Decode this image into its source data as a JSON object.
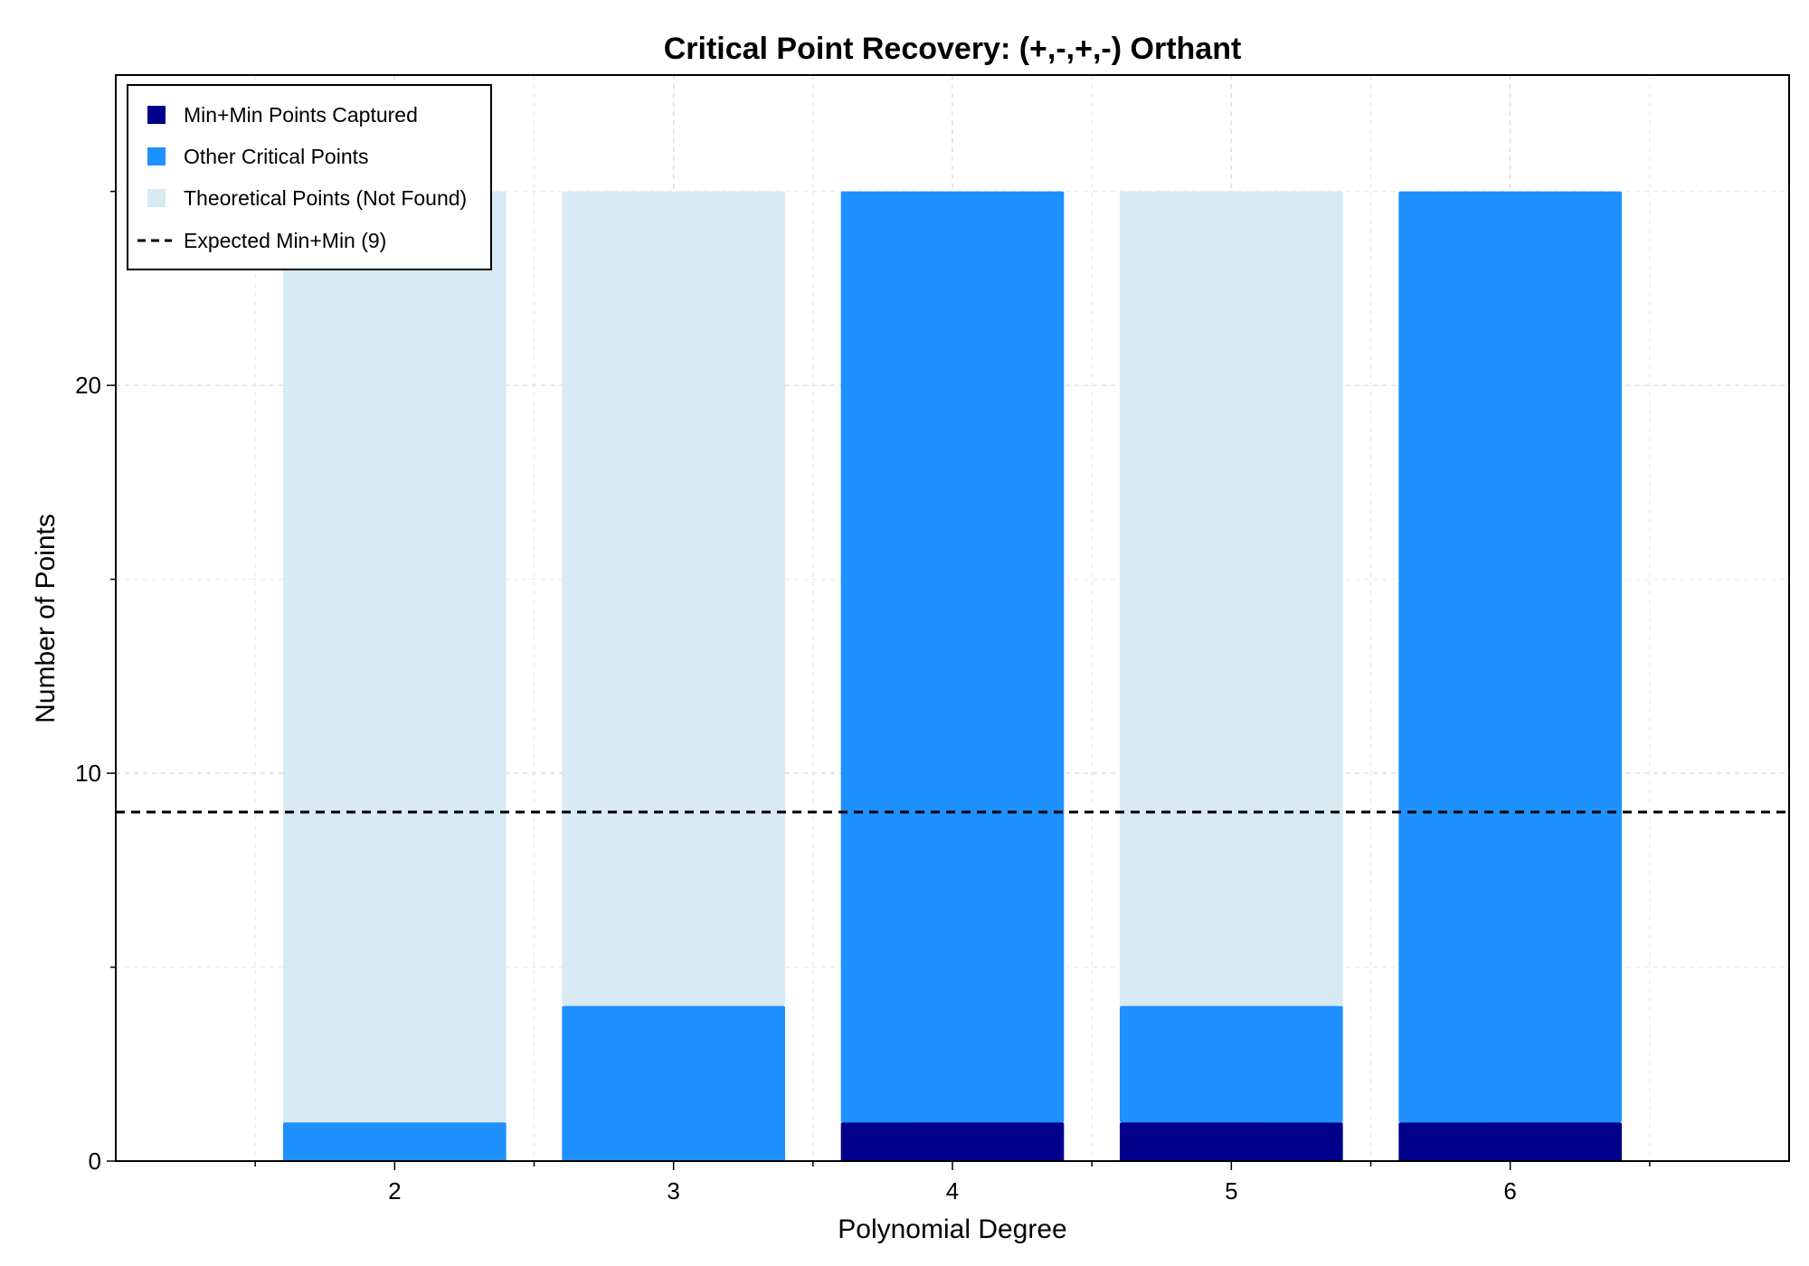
{
  "chart_data": {
    "type": "bar",
    "stacked": true,
    "title": "Critical Point Recovery: (+,-,+,-) Orthant",
    "xlabel": "Polynomial Degree",
    "ylabel": "Number of Points",
    "categories": [
      2,
      3,
      4,
      5,
      6
    ],
    "xlim": [
      1,
      7
    ],
    "ylim": [
      0,
      28
    ],
    "x_ticks": [
      2,
      3,
      4,
      5,
      6
    ],
    "y_ticks": [
      0,
      10,
      20
    ],
    "grid": true,
    "legend_position": "top-left",
    "series": [
      {
        "name": "Min+Min Points Captured",
        "color": "#00008b",
        "values": [
          0,
          0,
          1,
          1,
          1
        ]
      },
      {
        "name": "Other Critical Points",
        "color": "#1e90ff",
        "values": [
          1,
          4,
          24,
          3,
          24
        ]
      },
      {
        "name": "Theoretical Points (Not Found)",
        "color": "#d8eaf4",
        "values": [
          24,
          21,
          0,
          21,
          0
        ]
      }
    ],
    "reference_line": {
      "name": "Expected Min+Min (9)",
      "value": 9,
      "color": "#000000",
      "style": "dashed"
    }
  }
}
